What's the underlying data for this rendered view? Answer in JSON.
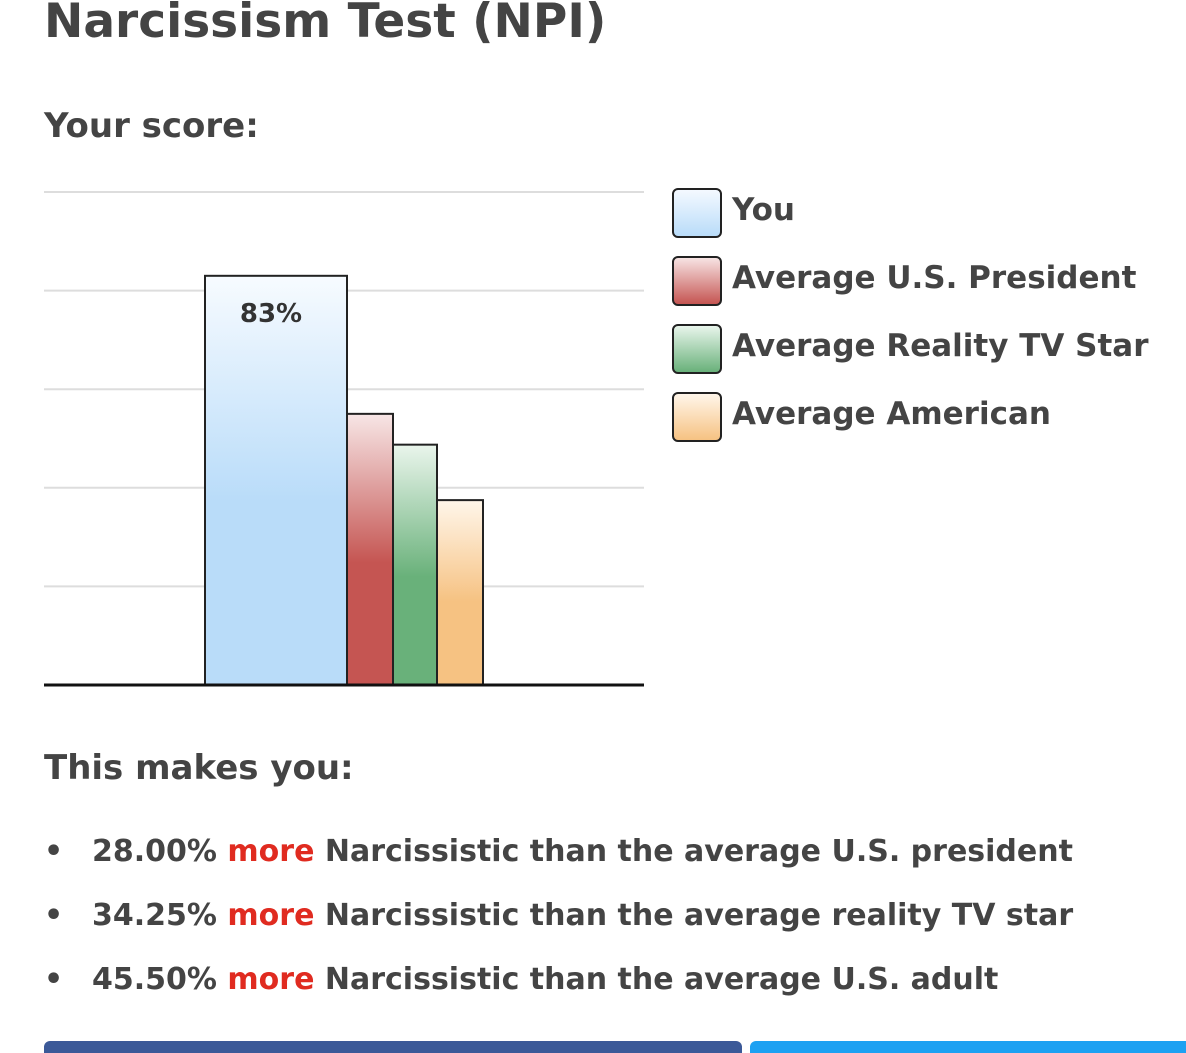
{
  "title": "Narcissism Test (NPI)",
  "score_heading": "Your score:",
  "makes_you_heading": "This makes you:",
  "chart_data": {
    "type": "bar",
    "categories": [
      "You",
      "Average U.S. President",
      "Average Reality TV Star",
      "Average American"
    ],
    "values": [
      83,
      55,
      48.75,
      37.5
    ],
    "ylim": [
      0,
      100
    ],
    "grid": true,
    "data_labels": [
      "83%",
      "",
      "",
      ""
    ],
    "legend_position": "right",
    "series_colors": [
      {
        "top": "#f7fbff",
        "bottom": "#b9dcf9"
      },
      {
        "top": "#f7e6e6",
        "bottom": "#c55552"
      },
      {
        "top": "#eaf5ec",
        "bottom": "#69b17a"
      },
      {
        "top": "#fff6ea",
        "bottom": "#f6c282"
      }
    ]
  },
  "legend": {
    "items": [
      {
        "label": "You",
        "swatch_top": "#f4f9ff",
        "swatch_bottom": "#b9dcf9"
      },
      {
        "label": "Average U.S. President",
        "swatch_top": "#f7e3e3",
        "swatch_bottom": "#c55552"
      },
      {
        "label": "Average Reality TV Star",
        "swatch_top": "#e8f5eb",
        "swatch_bottom": "#69b17a"
      },
      {
        "label": "Average American",
        "swatch_top": "#fff6ea",
        "swatch_bottom": "#f6c282"
      }
    ]
  },
  "comparisons": [
    {
      "bullet": "•",
      "percent": "28.00%",
      "more": "more",
      "text": "Narcissistic than the average U.S. president"
    },
    {
      "bullet": "•",
      "percent": "34.25%",
      "more": "more",
      "text": "Narcissistic than the average reality TV star"
    },
    {
      "bullet": "•",
      "percent": "45.50%",
      "more": "more",
      "text": "Narcissistic than the average U.S. adult"
    }
  ],
  "colors": {
    "text": "#444444",
    "accent_more": "#e02b20",
    "grid": "#dddddd",
    "axis": "#111111",
    "share_facebook": "#3b5998",
    "share_twitter": "#1da1f2"
  }
}
